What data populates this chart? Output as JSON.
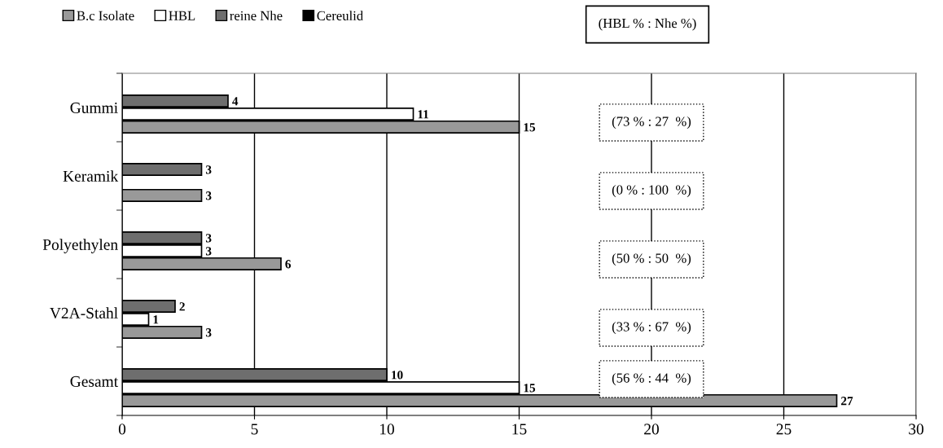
{
  "chart_data": {
    "type": "bar",
    "orientation": "horizontal",
    "categories": [
      "Gummi",
      "Keramik",
      "Polyethylen",
      "V2A-Stahl",
      "Gesamt"
    ],
    "series": [
      {
        "name": "B.c Isolate",
        "color": "#999999",
        "values": [
          15,
          3,
          6,
          3,
          27
        ]
      },
      {
        "name": "HBL",
        "color": "#ffffff",
        "values": [
          11,
          null,
          3,
          1,
          15
        ]
      },
      {
        "name": "reine Nhe",
        "color": "#6e6e6e",
        "values": [
          4,
          3,
          3,
          2,
          10
        ]
      },
      {
        "name": "Cereulid",
        "color": "#000000",
        "values": [
          null,
          null,
          null,
          null,
          null
        ]
      }
    ],
    "xlim": [
      0,
      30
    ],
    "xticks": [
      0,
      5,
      10,
      15,
      20,
      25,
      30
    ],
    "grid": "x",
    "legend": "top",
    "data_labels": true,
    "annotations": [
      "(HBL % : Nhe %)",
      "(73 % : 27  %)",
      "(0 % : 100  %)",
      "(50 % : 50  %)",
      "(33 % : 67  %)",
      "(56 % : 44  %)"
    ]
  }
}
